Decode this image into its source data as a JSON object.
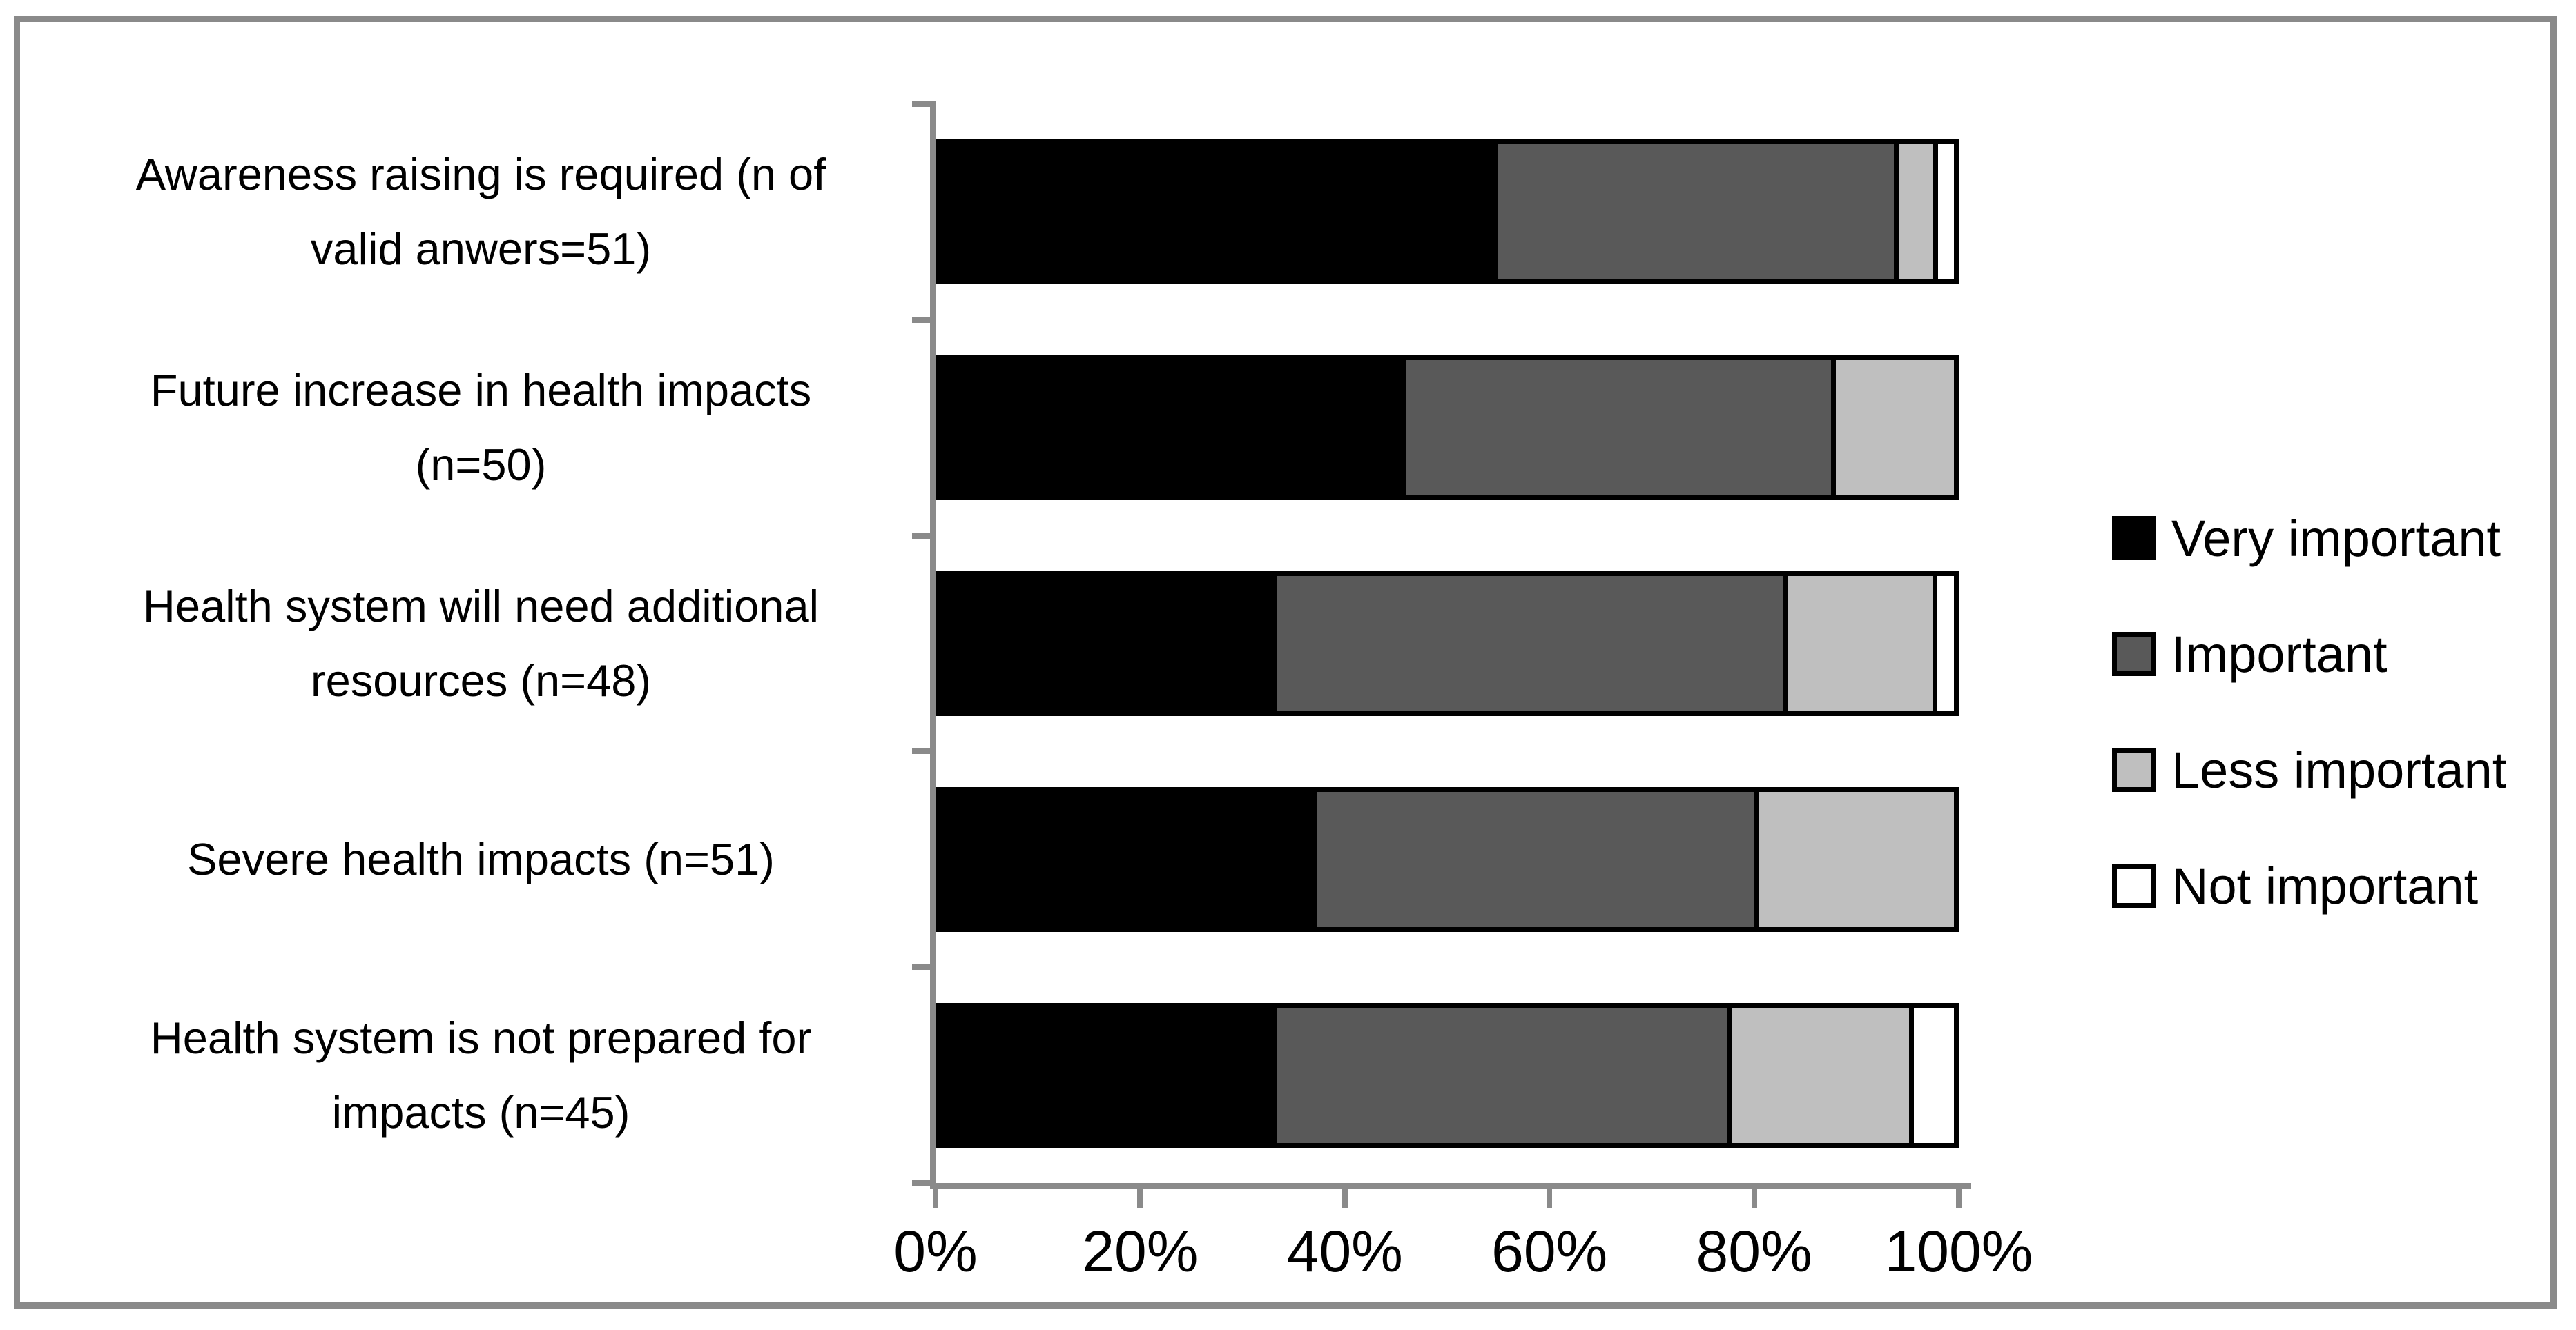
{
  "figure": {
    "background": "#ffffff",
    "frame_color": "#8a8a8a",
    "axis_color": "#8a8a8a",
    "text_color": "#000000"
  },
  "chart_data": {
    "type": "bar",
    "stacked": true,
    "orientation": "horizontal",
    "title": "",
    "xlabel": "",
    "ylabel": "",
    "xlim": [
      0,
      100
    ],
    "grid": false,
    "legend_position": "right",
    "categories": [
      "Awareness raising is required (n of valid anwers=51)",
      "Future increase in health impacts (n=50)",
      "Health system will need additional resources (n=48)",
      "Severe health impacts (n=51)",
      "Health system is not prepared for impacts (n=45)"
    ],
    "category_lines": [
      [
        "Awareness raising is required (n of",
        "valid anwers=51)"
      ],
      [
        "Future increase in health impacts",
        "(n=50)"
      ],
      [
        "Health system will need additional",
        "resources (n=48)"
      ],
      [
        "Severe health impacts (n=51)"
      ],
      [
        "Health system is not prepared for",
        "impacts (n=45)"
      ]
    ],
    "x_tick_labels": [
      "0%",
      "20%",
      "40%",
      "60%",
      "80%",
      "100%"
    ],
    "series": [
      {
        "name": "Very important",
        "color": "#000000",
        "values": [
          54.9,
          46.0,
          33.3,
          37.3,
          33.3
        ]
      },
      {
        "name": "Important",
        "color": "#595959",
        "values": [
          39.2,
          42.0,
          50.0,
          43.1,
          44.4
        ]
      },
      {
        "name": "Less important",
        "color": "#bfbfbf",
        "values": [
          3.9,
          12.0,
          14.6,
          19.6,
          17.8
        ]
      },
      {
        "name": "Not important",
        "color": "#ffffff",
        "values": [
          2.0,
          0.0,
          2.1,
          0.0,
          4.4
        ]
      }
    ]
  }
}
